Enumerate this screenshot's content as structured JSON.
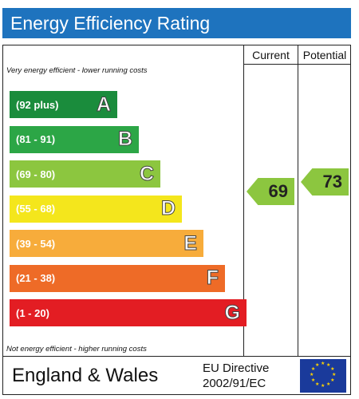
{
  "title": "Energy Efficiency Rating",
  "columns": {
    "current": "Current",
    "potential": "Potential"
  },
  "notes": {
    "top": "Very energy efficient - lower running costs",
    "bottom": "Not energy efficient - higher running costs"
  },
  "footer": {
    "region": "England & Wales",
    "directive_line1": "EU Directive",
    "directive_line2": "2002/91/EC"
  },
  "chart_data": {
    "type": "table",
    "bands": [
      {
        "range": "(92 plus)",
        "letter": "A",
        "color": "#1a8c3c"
      },
      {
        "range": "(81 - 91)",
        "letter": "B",
        "color": "#2ca646"
      },
      {
        "range": "(69 - 80)",
        "letter": "C",
        "color": "#8cc63f"
      },
      {
        "range": "(55 - 68)",
        "letter": "D",
        "color": "#f4e61c"
      },
      {
        "range": "(39 - 54)",
        "letter": "E",
        "color": "#f7ac3b"
      },
      {
        "range": "(21 - 38)",
        "letter": "F",
        "color": "#ee6b27"
      },
      {
        "range": "(1 - 20)",
        "letter": "G",
        "color": "#e31d23"
      }
    ],
    "current": {
      "value": "69",
      "color": "#8cc63f"
    },
    "potential": {
      "value": "73",
      "color": "#8cc63f"
    }
  }
}
